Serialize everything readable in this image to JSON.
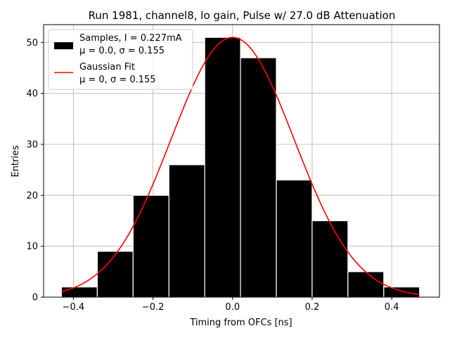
{
  "chart_data": {
    "type": "histogram",
    "title": "Run 1981, channel8, lo gain, Pulse w/ 27.0 dB Attenuation",
    "xlabel": "Timing from OFCs [ns]",
    "ylabel": "Entries",
    "xlim": [
      -0.475,
      0.52
    ],
    "ylim": [
      0,
      53.5
    ],
    "xticks": [
      -0.4,
      -0.2,
      0.0,
      0.2,
      0.4
    ],
    "xtick_labels": [
      "−0.4",
      "−0.2",
      "0.0",
      "0.2",
      "0.4"
    ],
    "yticks": [
      0,
      10,
      20,
      30,
      40,
      50
    ],
    "ytick_labels": [
      "0",
      "10",
      "20",
      "30",
      "40",
      "50"
    ],
    "grid": true,
    "legend_position": "top-left",
    "histogram": {
      "name": "Samples, I = 0.227mA",
      "stats_label": "μ = 0.0, σ = 0.155",
      "color": "#000000",
      "edge_color": "#ffffff",
      "bin_edges": [
        -0.43,
        -0.34,
        -0.25,
        -0.16,
        -0.07,
        0.02,
        0.11,
        0.2,
        0.29,
        0.38,
        0.47
      ],
      "counts": [
        2,
        9,
        20,
        26,
        51,
        47,
        23,
        15,
        5,
        2
      ]
    },
    "fit": {
      "name": "Gaussian Fit",
      "stats_label": "μ = 0, σ = 0.155",
      "color": "#ff0000",
      "mu": 0,
      "sigma": 0.155,
      "amplitude": 51,
      "x_range": [
        -0.43,
        0.47
      ]
    }
  }
}
